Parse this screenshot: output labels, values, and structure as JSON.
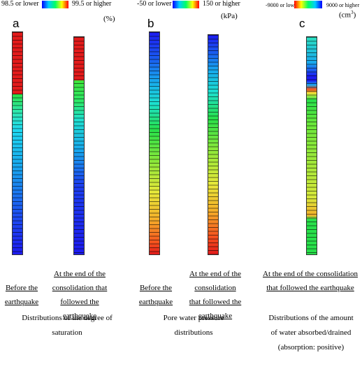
{
  "legends": {
    "saturation": {
      "min_label": "98.5 or lower",
      "max_label": "99.5 or higher",
      "unit": "(%)"
    },
    "pressure": {
      "min_label": "-50 or lower",
      "max_label": "150 or higher",
      "unit": "(kPa)"
    },
    "water": {
      "min_label": "-9000 or lower",
      "max_label": "9000 or higher",
      "unit": "(cm",
      "unit_sup": "3",
      "unit_close": ")"
    }
  },
  "panels": {
    "a": {
      "letter": "a",
      "col1_label": [
        "Before the",
        "earthquake"
      ],
      "col2_label": [
        "At the end of the",
        "consolidation that",
        "followed the",
        "earthquake"
      ],
      "caption": [
        "Distributions of the degree of",
        "saturation"
      ]
    },
    "b": {
      "letter": "b",
      "col1_label": [
        "Before the",
        "earthquake"
      ],
      "col2_label": [
        "At the end of the",
        "consolidation",
        "that followed the",
        "earthquake"
      ],
      "caption": [
        "Pore water pressure",
        "distributions"
      ]
    },
    "c": {
      "letter": "c",
      "col1_label": [
        "At the end of the consolidation",
        "that followed the earthquake"
      ],
      "caption": [
        "Distributions of the amount",
        "of water absorbed/drained",
        "(absorption: positive)"
      ]
    }
  },
  "colors": {
    "scale": [
      "#0000ff",
      "#00aaff",
      "#00e0ff",
      "#00ff66",
      "#7fff00",
      "#ffff00",
      "#ffaa00",
      "#ff0000"
    ],
    "red": "#e31b1b",
    "green": "#27e43a",
    "blue": "#1d1bf0"
  }
}
